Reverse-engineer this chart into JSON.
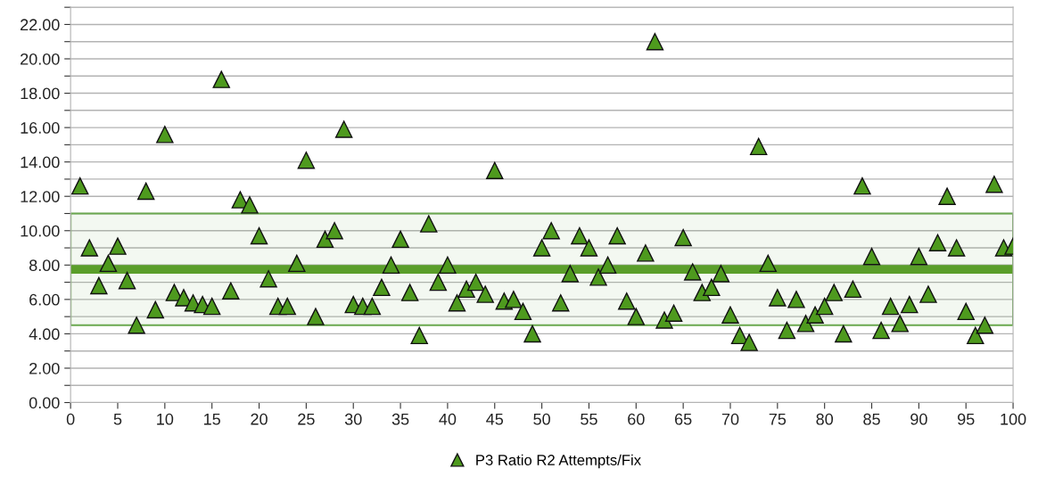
{
  "chart_data": {
    "type": "scatter",
    "x": [
      1,
      2,
      3,
      4,
      5,
      6,
      7,
      8,
      9,
      10,
      11,
      12,
      13,
      14,
      15,
      16,
      17,
      18,
      19,
      20,
      21,
      22,
      23,
      24,
      25,
      26,
      27,
      28,
      29,
      30,
      31,
      32,
      33,
      34,
      35,
      36,
      37,
      38,
      39,
      40,
      41,
      42,
      43,
      44,
      45,
      46,
      47,
      48,
      49,
      50,
      51,
      52,
      53,
      54,
      55,
      56,
      57,
      58,
      59,
      60,
      61,
      62,
      63,
      64,
      65,
      66,
      67,
      68,
      69,
      70,
      71,
      72,
      73,
      74,
      75,
      76,
      77,
      78,
      79,
      80,
      81,
      82,
      83,
      84,
      85,
      86,
      87,
      88,
      89,
      90,
      91,
      92,
      93,
      94,
      95,
      96,
      97,
      98,
      99,
      100
    ],
    "series": [
      {
        "name": "P3 Ratio R2 Attempts/Fix",
        "color": "#4e9a1e",
        "values": [
          12.6,
          9.0,
          6.8,
          8.1,
          9.1,
          7.1,
          4.5,
          12.3,
          5.4,
          15.6,
          6.4,
          6.1,
          5.8,
          5.7,
          5.6,
          18.8,
          6.5,
          11.8,
          11.5,
          9.7,
          7.2,
          5.6,
          5.6,
          8.1,
          14.1,
          5.0,
          9.5,
          10.0,
          15.9,
          5.7,
          5.6,
          5.6,
          6.7,
          8.0,
          9.5,
          6.4,
          3.9,
          10.4,
          7.0,
          8.0,
          5.8,
          6.6,
          7.0,
          6.3,
          13.5,
          5.9,
          6.0,
          5.3,
          4.0,
          9.0,
          10.0,
          5.8,
          7.5,
          9.7,
          9.0,
          7.3,
          8.0,
          9.7,
          5.9,
          5.0,
          8.7,
          21.0,
          4.8,
          5.2,
          9.6,
          7.6,
          6.4,
          6.7,
          7.5,
          5.1,
          3.9,
          3.5,
          14.9,
          8.1,
          6.1,
          4.2,
          6.0,
          4.6,
          5.1,
          5.6,
          6.4,
          4.0,
          6.6,
          12.6,
          8.5,
          4.2,
          5.6,
          4.6,
          5.7,
          8.5,
          6.3,
          9.3,
          12.0,
          9.0,
          5.3,
          3.9,
          4.5,
          12.7,
          9.0,
          9.1
        ]
      }
    ],
    "marker": "triangle",
    "bands": [
      {
        "axis": "y",
        "from": 4.5,
        "to": 11,
        "color": "#6aa84f"
      }
    ],
    "ref_lines": [
      {
        "axis": "y",
        "value": 7.75,
        "color": "#5a9e2a",
        "line_style": "solid"
      }
    ],
    "xlim": [
      0,
      100
    ],
    "xticks": [
      0,
      5,
      10,
      15,
      20,
      25,
      30,
      35,
      40,
      45,
      50,
      55,
      60,
      65,
      70,
      75,
      80,
      85,
      90,
      95,
      100
    ],
    "ylim": [
      0,
      23
    ],
    "yticks": [
      {
        "value": 0,
        "label": "0.00"
      },
      {
        "value": 1,
        "label": null
      },
      {
        "value": 2,
        "label": "2.00"
      },
      {
        "value": 3,
        "label": null
      },
      {
        "value": 4,
        "label": "4.00"
      },
      {
        "value": 5,
        "label": null
      },
      {
        "value": 6,
        "label": "6.00"
      },
      {
        "value": 7,
        "label": null
      },
      {
        "value": 8,
        "label": "8.00"
      },
      {
        "value": 9,
        "label": null
      },
      {
        "value": 10,
        "label": "10.00"
      },
      {
        "value": 11,
        "label": null
      },
      {
        "value": 12,
        "label": "12.00"
      },
      {
        "value": 13,
        "label": null
      },
      {
        "value": 14,
        "label": "14.00"
      },
      {
        "value": 15,
        "label": null
      },
      {
        "value": 16,
        "label": "16.00"
      },
      {
        "value": 17,
        "label": null
      },
      {
        "value": 18,
        "label": "18.00"
      },
      {
        "value": 19,
        "label": null
      },
      {
        "value": 20,
        "label": "20.00"
      },
      {
        "value": 21,
        "label": null
      },
      {
        "value": 22,
        "label": "22.00"
      },
      {
        "value": 23,
        "label": null
      }
    ],
    "grid": "y",
    "legend": "bottom"
  }
}
